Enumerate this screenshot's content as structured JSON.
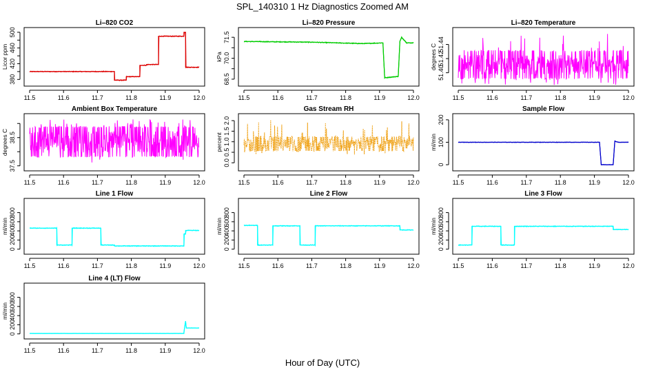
{
  "figure": {
    "title": "SPL_140310  1 Hz Diagnostics Zoomed AM",
    "xlabel": "Hour of Day (UTC)"
  },
  "chart_data": [
    {
      "type": "line",
      "title": "Li–820 CO2",
      "ylabel": "Licor ppm",
      "color": "#dd0000",
      "xlim": [
        11.5,
        12.0
      ],
      "ylim": [
        370,
        505
      ],
      "xticks": [
        "11.5",
        "11.6",
        "11.7",
        "11.8",
        "11.9",
        "12.0"
      ],
      "yticks": [
        380,
        400,
        420,
        440,
        460,
        480,
        500
      ],
      "ytick_labels": [
        "380",
        "",
        "420",
        "",
        "460",
        "",
        "500"
      ],
      "noise": 1,
      "x": [
        11.5,
        11.75,
        11.75,
        11.785,
        11.785,
        11.825,
        11.825,
        11.845,
        11.845,
        11.88,
        11.88,
        11.955,
        11.955,
        11.96,
        11.96,
        12.0
      ],
      "y": [
        400,
        400,
        378,
        378,
        387,
        387,
        416,
        416,
        418,
        418,
        490,
        490,
        500,
        500,
        411,
        411
      ]
    },
    {
      "type": "line",
      "title": "Li–820 Pressure",
      "ylabel": "kPa",
      "color": "#00cc00",
      "xlim": [
        11.5,
        12.0
      ],
      "ylim": [
        68.2,
        72.0
      ],
      "xticks": [
        "11.5",
        "11.6",
        "11.7",
        "11.8",
        "11.9",
        "12.0"
      ],
      "yticks": [
        68.5,
        69.25,
        70.0,
        70.75,
        71.5
      ],
      "ytick_labels": [
        "68.5",
        "",
        "70.0",
        "",
        "71.5"
      ],
      "noise": 0.03,
      "x": [
        11.5,
        11.7,
        11.85,
        11.91,
        11.915,
        11.955,
        11.96,
        11.965,
        11.98,
        12.0
      ],
      "y": [
        71.2,
        71.15,
        71.05,
        71.1,
        68.6,
        68.7,
        71.2,
        71.5,
        71.1,
        71.1
      ]
    },
    {
      "type": "line",
      "title": "Li–820 Temperature",
      "ylabel": "degrees C",
      "color": "#ff00ff",
      "xlim": [
        11.5,
        12.0
      ],
      "ylim": [
        51.385,
        51.46
      ],
      "xticks": [
        "11.5",
        "11.6",
        "11.7",
        "11.8",
        "11.9",
        "12.0"
      ],
      "yticks": [
        51.4,
        51.42,
        51.44
      ],
      "ytick_labels": [
        "51.40",
        "51.42",
        "51.44"
      ],
      "band": [
        51.391,
        51.432
      ],
      "spike": 51.46,
      "x": [
        11.5,
        12.0
      ],
      "y": [
        51.391,
        51.432
      ]
    },
    {
      "type": "line",
      "title": "Ambient Box Temperature",
      "ylabel": "degrees C",
      "color": "#ff00ff",
      "xlim": [
        11.5,
        12.0
      ],
      "ylim": [
        37.42,
        39.25
      ],
      "xticks": [
        "11.5",
        "11.6",
        "11.7",
        "11.8",
        "11.9",
        "12.0"
      ],
      "yticks": [
        37.5,
        38.0,
        38.5,
        39.0
      ],
      "ytick_labels": [
        "37.5",
        "",
        "38.5",
        ""
      ],
      "band": [
        37.8,
        38.9
      ],
      "spike": 39.15,
      "x": [
        11.5,
        12.0
      ],
      "y": [
        37.8,
        38.9
      ]
    },
    {
      "type": "scatter",
      "title": "Gas Stream RH",
      "ylabel": "percent",
      "color": "#ee9900",
      "xlim": [
        11.5,
        12.0
      ],
      "ylim": [
        -0.25,
        2.2
      ],
      "xticks": [
        "11.5",
        "11.6",
        "11.7",
        "11.8",
        "11.9",
        "12.0"
      ],
      "yticks": [
        0.0,
        0.5,
        1.0,
        1.5,
        2.0
      ],
      "ytick_labels": [
        "0.0",
        "0.5",
        "1.0",
        "1.5",
        "2.0"
      ],
      "band": [
        0.55,
        1.25
      ],
      "spike": 2.05,
      "x": [
        11.5,
        12.0
      ],
      "y": [
        0.55,
        1.25
      ]
    },
    {
      "type": "line",
      "title": "Sample Flow",
      "ylabel": "ml/min",
      "color": "#0000cc",
      "xlim": [
        11.5,
        12.0
      ],
      "ylim": [
        -15,
        215
      ],
      "xticks": [
        "11.5",
        "11.6",
        "11.7",
        "11.8",
        "11.9",
        "12.0"
      ],
      "yticks": [
        0,
        100,
        200
      ],
      "ytick_labels": [
        "0",
        "100",
        "200"
      ],
      "noise": 1,
      "x": [
        11.5,
        11.915,
        11.92,
        11.955,
        11.96,
        11.97,
        12.0
      ],
      "y": [
        100,
        100,
        0,
        0,
        105,
        100,
        100
      ]
    },
    {
      "type": "line",
      "title": "Line 1 Flow",
      "ylabel": "ml/min",
      "color": "#00ffff",
      "xlim": [
        11.5,
        12.0
      ],
      "ylim": [
        -50,
        1050
      ],
      "xticks": [
        "11.5",
        "11.6",
        "11.7",
        "11.8",
        "11.9",
        "12.0"
      ],
      "yticks": [
        0,
        200,
        400,
        600,
        800
      ],
      "ytick_labels": [
        "0",
        "200",
        "400",
        "600",
        "800"
      ],
      "noise": 8,
      "x": [
        11.5,
        11.58,
        11.58,
        11.625,
        11.625,
        11.71,
        11.71,
        11.75,
        11.75,
        11.955,
        11.955,
        11.96,
        11.96,
        12.0
      ],
      "y": [
        460,
        460,
        90,
        90,
        460,
        460,
        90,
        90,
        70,
        70,
        330,
        330,
        410,
        410
      ]
    },
    {
      "type": "line",
      "title": "Line 2 Flow",
      "ylabel": "ml/min",
      "color": "#00ffff",
      "xlim": [
        11.5,
        12.0
      ],
      "ylim": [
        -50,
        1050
      ],
      "xticks": [
        "11.5",
        "11.6",
        "11.7",
        "11.8",
        "11.9",
        "12.0"
      ],
      "yticks": [
        0,
        200,
        400,
        600,
        800
      ],
      "ytick_labels": [
        "0",
        "200",
        "400",
        "600",
        "800"
      ],
      "noise": 8,
      "x": [
        11.5,
        11.54,
        11.54,
        11.585,
        11.585,
        11.665,
        11.665,
        11.71,
        11.71,
        11.96,
        11.96,
        12.0
      ],
      "y": [
        520,
        520,
        90,
        90,
        510,
        510,
        90,
        90,
        510,
        510,
        420,
        420
      ]
    },
    {
      "type": "line",
      "title": "Line 3 Flow",
      "ylabel": "ml/min",
      "color": "#00ffff",
      "xlim": [
        11.5,
        12.0
      ],
      "ylim": [
        -50,
        1050
      ],
      "xticks": [
        "11.5",
        "11.6",
        "11.7",
        "11.8",
        "11.9",
        "12.0"
      ],
      "yticks": [
        0,
        200,
        400,
        600,
        800
      ],
      "ytick_labels": [
        "0",
        "200",
        "400",
        "600",
        "800"
      ],
      "noise": 8,
      "x": [
        11.5,
        11.54,
        11.54,
        11.625,
        11.625,
        11.665,
        11.665,
        11.955,
        11.955,
        12.0
      ],
      "y": [
        90,
        90,
        500,
        500,
        90,
        90,
        500,
        500,
        430,
        430
      ]
    },
    {
      "type": "line",
      "title": "Line 4 (LT) Flow",
      "ylabel": "ml/min",
      "color": "#00ffff",
      "xlim": [
        11.5,
        12.0
      ],
      "ylim": [
        -50,
        1050
      ],
      "xticks": [
        "11.5",
        "11.6",
        "11.7",
        "11.8",
        "11.9",
        "12.0"
      ],
      "yticks": [
        0,
        200,
        400,
        600,
        800
      ],
      "ytick_labels": [
        "0",
        "200",
        "400",
        "600",
        "800"
      ],
      "noise": 2,
      "x": [
        11.5,
        11.955,
        11.955,
        11.96,
        11.962,
        12.0
      ],
      "y": [
        10,
        10,
        40,
        280,
        130,
        130
      ]
    }
  ]
}
